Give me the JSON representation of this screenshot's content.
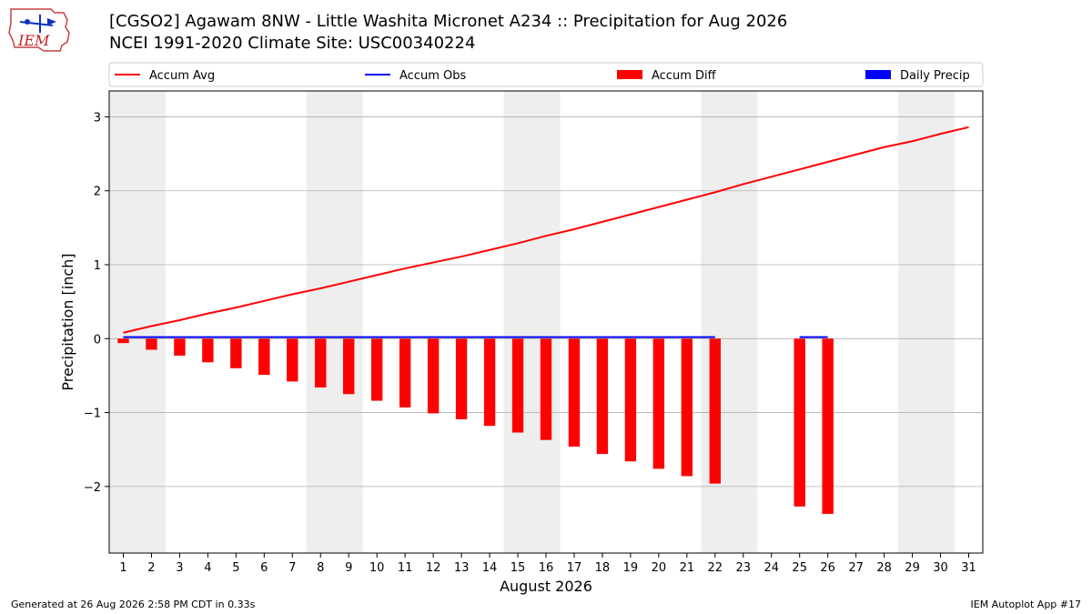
{
  "header": {
    "title_line1": "[CGSO2] Agawam 8NW - Little Washita Micronet A234 :: Precipitation for Aug 2026",
    "title_line2": "NCEI 1991-2020 Climate Site: USC00340224"
  },
  "logo": {
    "text": "IEM",
    "icon": "iem-logo-icon"
  },
  "footer": {
    "left": "Generated at 26 Aug 2026 2:58 PM CDT in 0.33s",
    "right": "IEM Autoplot App #17"
  },
  "colors": {
    "accum_avg": "#ff0000",
    "accum_obs": "#0000ff",
    "accum_diff": "#ff0000",
    "daily_precip": "#0000ff",
    "weekend_shade": "#eeeeee",
    "grid": "#b0b0b0"
  },
  "chart_data": {
    "type": "bar",
    "xlabel": "August 2026",
    "ylabel": "Precipitation [inch]",
    "xlim": [
      0.5,
      31.5
    ],
    "ylim": [
      -2.9,
      3.35
    ],
    "yticks": [
      -2,
      -1,
      0,
      1,
      2,
      3
    ],
    "ytick_labels": [
      "−2",
      "−1",
      "0",
      "1",
      "2",
      "3"
    ],
    "days": [
      1,
      2,
      3,
      4,
      5,
      6,
      7,
      8,
      9,
      10,
      11,
      12,
      13,
      14,
      15,
      16,
      17,
      18,
      19,
      20,
      21,
      22,
      23,
      24,
      25,
      26,
      27,
      28,
      29,
      30,
      31
    ],
    "weekend_shading": [
      [
        0.5,
        2.5
      ],
      [
        7.5,
        9.5
      ],
      [
        14.5,
        16.5
      ],
      [
        21.5,
        23.5
      ],
      [
        28.5,
        30.5
      ]
    ],
    "grid": true,
    "legend": {
      "placement": "top",
      "entries": [
        "Accum Avg",
        "Accum Obs",
        "Accum Diff",
        "Daily Precip"
      ]
    },
    "series": [
      {
        "name": "Accum Avg",
        "type": "line",
        "x": [
          1,
          2,
          3,
          4,
          5,
          6,
          7,
          8,
          9,
          10,
          11,
          12,
          13,
          14,
          15,
          16,
          17,
          18,
          19,
          20,
          21,
          22,
          23,
          24,
          25,
          26,
          27,
          28,
          29,
          30,
          31
        ],
        "values": [
          0.08,
          0.17,
          0.25,
          0.34,
          0.42,
          0.51,
          0.6,
          0.68,
          0.77,
          0.86,
          0.95,
          1.03,
          1.11,
          1.2,
          1.29,
          1.39,
          1.48,
          1.58,
          1.68,
          1.78,
          1.88,
          1.98,
          2.09,
          2.19,
          2.29,
          2.39,
          2.49,
          2.59,
          2.67,
          2.77,
          2.86
        ]
      },
      {
        "name": "Accum Obs",
        "type": "line",
        "segments": [
          {
            "x": [
              1,
              22
            ],
            "values": [
              0.02,
              0.02
            ]
          },
          {
            "x": [
              25,
              26
            ],
            "values": [
              0.02,
              0.02
            ]
          }
        ]
      },
      {
        "name": "Accum Diff",
        "type": "bar",
        "x": [
          1,
          2,
          3,
          4,
          5,
          6,
          7,
          8,
          9,
          10,
          11,
          12,
          13,
          14,
          15,
          16,
          17,
          18,
          19,
          20,
          21,
          22,
          25,
          26
        ],
        "values": [
          -0.06,
          -0.15,
          -0.23,
          -0.32,
          -0.4,
          -0.49,
          -0.58,
          -0.66,
          -0.75,
          -0.84,
          -0.93,
          -1.01,
          -1.09,
          -1.18,
          -1.27,
          -1.37,
          -1.46,
          -1.56,
          -1.66,
          -1.76,
          -1.86,
          -1.96,
          -2.27,
          -2.37
        ]
      },
      {
        "name": "Daily Precip",
        "type": "bar",
        "x": [],
        "values": []
      }
    ]
  }
}
